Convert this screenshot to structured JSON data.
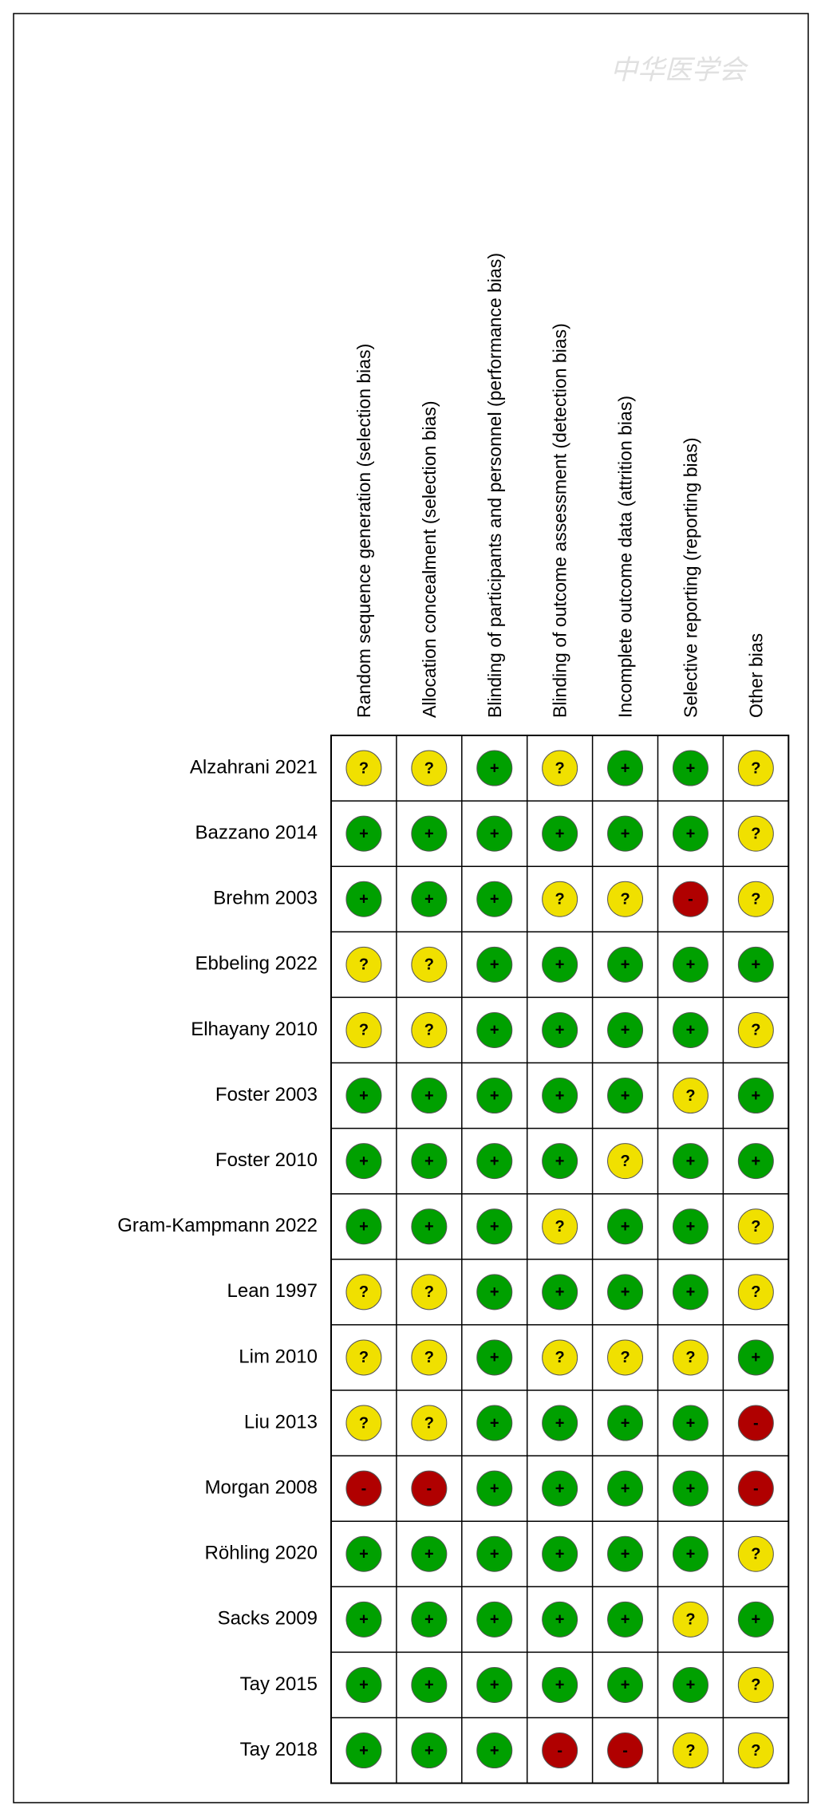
{
  "watermark": "中华医学会",
  "columns": [
    "Random sequence generation (selection bias)",
    "Allocation concealment (selection bias)",
    "Blinding of participants and personnel (performance bias)",
    "Blinding of outcome assessment (detection bias)",
    "Incomplete outcome data (attrition bias)",
    "Selective reporting (reporting bias)",
    "Other bias"
  ],
  "symbol_colors": {
    "+": "#00a000",
    "?": "#f0e000",
    "-": "#b00000"
  },
  "rows": [
    {
      "study": "Alzahrani 2021",
      "cells": [
        "?",
        "?",
        "+",
        "?",
        "+",
        "+",
        "?"
      ]
    },
    {
      "study": "Bazzano 2014",
      "cells": [
        "+",
        "+",
        "+",
        "+",
        "+",
        "+",
        "?"
      ]
    },
    {
      "study": "Brehm 2003",
      "cells": [
        "+",
        "+",
        "+",
        "?",
        "?",
        "-",
        "?"
      ]
    },
    {
      "study": "Ebbeling 2022",
      "cells": [
        "?",
        "?",
        "+",
        "+",
        "+",
        "+",
        "+"
      ]
    },
    {
      "study": "Elhayany 2010",
      "cells": [
        "?",
        "?",
        "+",
        "+",
        "+",
        "+",
        "?"
      ]
    },
    {
      "study": "Foster 2003",
      "cells": [
        "+",
        "+",
        "+",
        "+",
        "+",
        "?",
        "+"
      ]
    },
    {
      "study": "Foster 2010",
      "cells": [
        "+",
        "+",
        "+",
        "+",
        "?",
        "+",
        "+"
      ]
    },
    {
      "study": "Gram-Kampmann 2022",
      "cells": [
        "+",
        "+",
        "+",
        "?",
        "+",
        "+",
        "?"
      ]
    },
    {
      "study": "Lean 1997",
      "cells": [
        "?",
        "?",
        "+",
        "+",
        "+",
        "+",
        "?"
      ]
    },
    {
      "study": "Lim 2010",
      "cells": [
        "?",
        "?",
        "+",
        "?",
        "?",
        "?",
        "+"
      ]
    },
    {
      "study": "Liu 2013",
      "cells": [
        "?",
        "?",
        "+",
        "+",
        "+",
        "+",
        "-"
      ]
    },
    {
      "study": "Morgan 2008",
      "cells": [
        "-",
        "-",
        "+",
        "+",
        "+",
        "+",
        "-"
      ]
    },
    {
      "study": "Röhling 2020",
      "cells": [
        "+",
        "+",
        "+",
        "+",
        "+",
        "+",
        "?"
      ]
    },
    {
      "study": "Sacks 2009",
      "cells": [
        "+",
        "+",
        "+",
        "+",
        "+",
        "?",
        "+"
      ]
    },
    {
      "study": "Tay 2015",
      "cells": [
        "+",
        "+",
        "+",
        "+",
        "+",
        "+",
        "?"
      ]
    },
    {
      "study": "Tay 2018",
      "cells": [
        "+",
        "+",
        "+",
        "-",
        "-",
        "?",
        "?"
      ]
    }
  ]
}
